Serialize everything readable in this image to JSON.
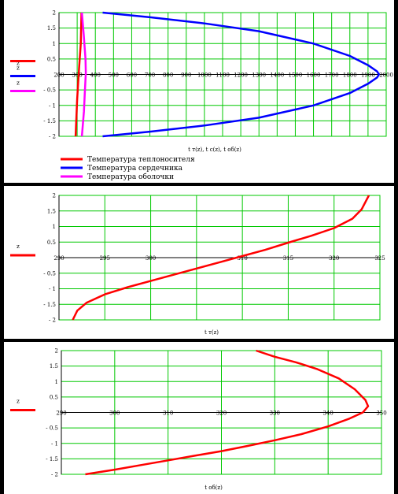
{
  "chart_data": [
    {
      "type": "line",
      "xlabel": "t т(z), t с(z), t об(z)",
      "ylabel": "z",
      "xlim": [
        200,
        2000
      ],
      "ylim": [
        -2,
        2
      ],
      "xticks": [
        200,
        300,
        400,
        500,
        600,
        700,
        800,
        900,
        1000,
        1100,
        1200,
        1300,
        1400,
        1500,
        1600,
        1700,
        1800,
        1900,
        2000
      ],
      "yticks": [
        -2,
        -1.5,
        -1,
        -0.5,
        0,
        0.5,
        1,
        1.5,
        2
      ],
      "ytick_labels": [
        "- 2",
        "- 1.5",
        "- 1",
        "- 0.5",
        "0",
        "0.5",
        "1",
        "1.5",
        "2"
      ],
      "grid": true,
      "legend": [
        {
          "name": "Температура теплоносителя",
          "color": "#ff0000"
        },
        {
          "name": "Температура сердечника",
          "color": "#0000ff"
        },
        {
          "name": "Температура оболочки",
          "color": "#ff00ff"
        }
      ],
      "series": [
        {
          "color": "#ff0000",
          "x": [
            291.5,
            300,
            310,
            320,
            323.8
          ],
          "y": [
            -2,
            -0.8,
            0.15,
            1.0,
            2
          ]
        },
        {
          "color": "#0000ff",
          "x": [
            440,
            700,
            1000,
            1300,
            1600,
            1800,
            1900,
            1950,
            1960,
            1950,
            1900,
            1800,
            1600,
            1300,
            1000,
            700,
            440
          ],
          "y": [
            -2,
            -1.85,
            -1.65,
            -1.4,
            -1.0,
            -0.6,
            -0.3,
            -0.1,
            0,
            0.1,
            0.3,
            0.6,
            1.0,
            1.4,
            1.65,
            1.85,
            2
          ]
        },
        {
          "color": "#ff00ff",
          "x": [
            326,
            337,
            343,
            347.5,
            346,
            336,
            326
          ],
          "y": [
            -2,
            -1.2,
            -0.5,
            0.05,
            0.5,
            1.3,
            2
          ]
        }
      ]
    },
    {
      "type": "line",
      "xlabel": "t т(z)",
      "ylabel": "z",
      "xlim": [
        290,
        325
      ],
      "ylim": [
        -2,
        2
      ],
      "xticks": [
        290,
        295,
        300,
        305,
        310,
        315,
        320,
        325
      ],
      "xtick_labels": [
        "290",
        "295",
        "300",
        "",
        "310",
        "315",
        "320",
        "325"
      ],
      "yticks": [
        -2,
        -1.5,
        -1,
        -0.5,
        0,
        0.5,
        1,
        1.5,
        2
      ],
      "ytick_labels": [
        "- 2",
        "- 1.5",
        "- 1",
        "- 0.5",
        "0",
        "0.5",
        "1",
        "1.5",
        "2"
      ],
      "grid": true,
      "series": [
        {
          "color": "#ff0000",
          "x": [
            291.5,
            292,
            293,
            295,
            297.5,
            300,
            302.5,
            305,
            307.5,
            310,
            312.5,
            315,
            317.5,
            320,
            322,
            323,
            323.8
          ],
          "y": [
            -2,
            -1.7,
            -1.45,
            -1.18,
            -0.95,
            -0.75,
            -0.55,
            -0.35,
            -0.15,
            0.05,
            0.25,
            0.48,
            0.7,
            0.95,
            1.25,
            1.55,
            2
          ]
        }
      ]
    },
    {
      "type": "line",
      "xlabel": "t об(z)",
      "ylabel": "z",
      "xlim": [
        290,
        350
      ],
      "ylim": [
        -2,
        2
      ],
      "xticks": [
        290,
        300,
        310,
        320,
        330,
        340,
        350
      ],
      "xtick_labels": [
        "290",
        "300",
        "310",
        "320",
        "330",
        "340",
        "350"
      ],
      "yticks": [
        -2,
        -1.5,
        -1,
        -0.5,
        0,
        0.5,
        1,
        1.5,
        2
      ],
      "ytick_labels": [
        "- 2",
        "- 1.5",
        "- 1",
        "- 0.5",
        "0",
        "0.5",
        "1",
        "1.5",
        "2"
      ],
      "grid": true,
      "series": [
        {
          "color": "#ff0000",
          "x": [
            294.5,
            300,
            305,
            310,
            315,
            320,
            325,
            330,
            335,
            340,
            344,
            346.5,
            347.5,
            347,
            345,
            342,
            338,
            334,
            330,
            326.5
          ],
          "y": [
            -2,
            -1.85,
            -1.7,
            -1.55,
            -1.4,
            -1.25,
            -1.08,
            -0.9,
            -0.7,
            -0.45,
            -0.2,
            0.0,
            0.2,
            0.4,
            0.75,
            1.1,
            1.4,
            1.62,
            1.8,
            2
          ]
        }
      ]
    }
  ]
}
